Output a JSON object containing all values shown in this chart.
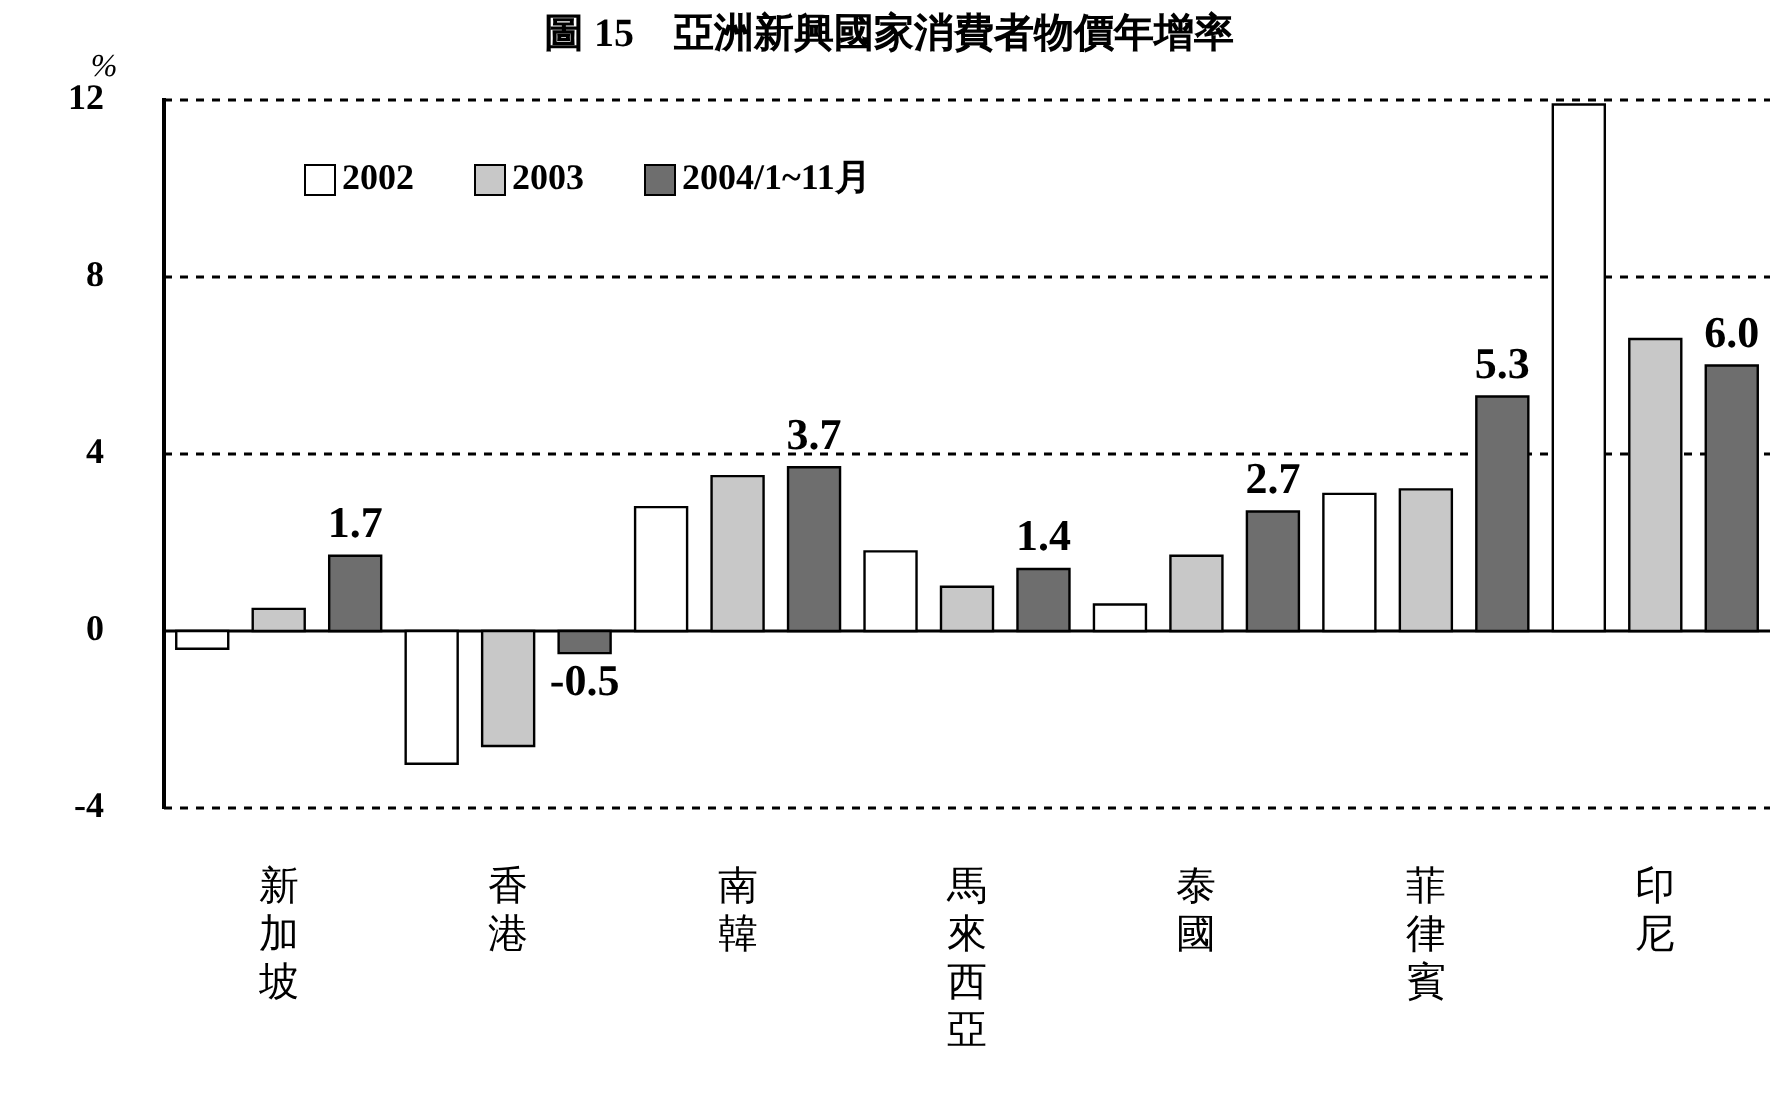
{
  "chart_data": {
    "type": "bar",
    "title": "圖 15　亞洲新興國家消費者物價年增率",
    "ylabel": "%",
    "categories": [
      "新加坡",
      "香港",
      "南韓",
      "馬來西亞",
      "泰國",
      "菲律賓",
      "印尼"
    ],
    "series": [
      {
        "name": "2002",
        "color": "#ffffff",
        "values": [
          -0.4,
          -3.0,
          2.8,
          1.8,
          0.6,
          3.1,
          11.9
        ]
      },
      {
        "name": "2003",
        "color": "#c8c8c8",
        "values": [
          0.5,
          -2.6,
          3.5,
          1.0,
          1.7,
          3.2,
          6.6
        ]
      },
      {
        "name": "2004/1~11月",
        "color": "#6e6e6e",
        "values": [
          1.7,
          -0.5,
          3.7,
          1.4,
          2.7,
          5.3,
          6.0
        ],
        "value_labels": [
          "1.7",
          "-0.5",
          "3.7",
          "1.4",
          "2.7",
          "5.3",
          "6.0"
        ]
      }
    ],
    "ylim": [
      -4,
      12
    ],
    "yticks": [
      -4,
      0,
      4,
      8,
      12
    ],
    "grid": "y",
    "legend": "top left"
  }
}
